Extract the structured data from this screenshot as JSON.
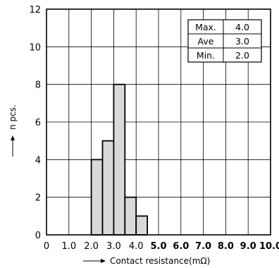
{
  "chart_data": {
    "type": "bar",
    "x_ticks": [
      "0",
      "1.0",
      "2.0",
      "3.0",
      "4.0",
      "5.0",
      "6.0",
      "7.0",
      "8.0",
      "9.0",
      "10.0"
    ],
    "x_tick_bold_from": 5,
    "y_ticks": [
      "0",
      "2",
      "4",
      "6",
      "8",
      "10",
      "12"
    ],
    "xlim": [
      0,
      10
    ],
    "ylim": [
      0,
      12
    ],
    "bin_width": 0.5,
    "bins": [
      {
        "x_start": 2.0,
        "count": 4
      },
      {
        "x_start": 2.5,
        "count": 5
      },
      {
        "x_start": 3.0,
        "count": 8
      },
      {
        "x_start": 3.5,
        "count": 2
      },
      {
        "x_start": 4.0,
        "count": 1
      }
    ],
    "xlabel": "Contact resistance(mΩ)",
    "ylabel": "n pcs.",
    "grid": true,
    "colors": {
      "bar_fill": "#d9d9d9",
      "bar_stroke": "#000000",
      "grid": "#000000"
    },
    "stats_table": [
      {
        "label": "Max.",
        "value": "4.0"
      },
      {
        "label": "Ave",
        "value": "3.0"
      },
      {
        "label": "Min.",
        "value": "2.0"
      }
    ]
  }
}
